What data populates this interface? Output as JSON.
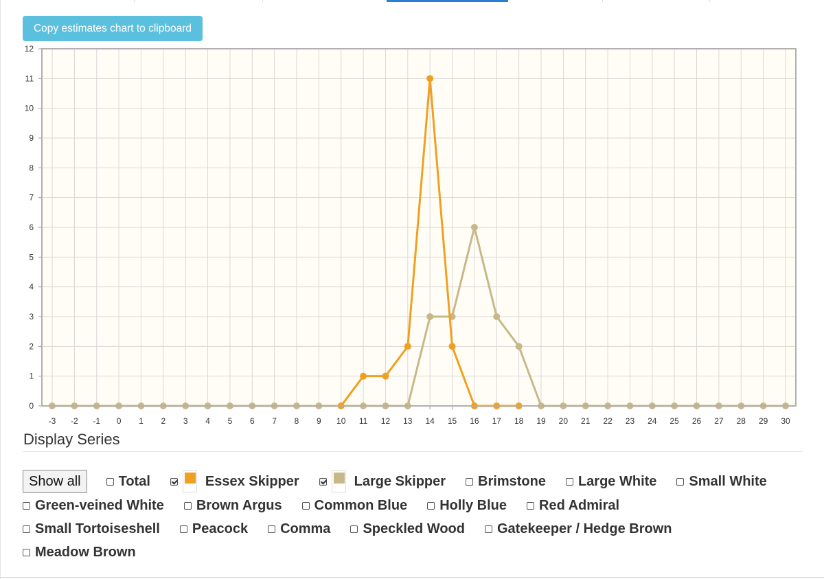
{
  "toolbar": {
    "copy_label": "Copy estimates chart to clipboard"
  },
  "colors": {
    "essex": "#f0a020",
    "large": "#c8b888",
    "plot_bg": "#fffdf5",
    "grid": "#d8d8d8",
    "axis": "#999999",
    "copy_button": "#5bc0de"
  },
  "chart_data": {
    "type": "line",
    "x": [
      -3,
      -2,
      -1,
      0,
      1,
      2,
      3,
      4,
      5,
      6,
      7,
      8,
      9,
      10,
      11,
      12,
      13,
      14,
      15,
      16,
      17,
      18,
      19,
      20,
      21,
      22,
      23,
      24,
      25,
      26,
      27,
      28,
      29,
      30
    ],
    "xlim": [
      -3,
      30
    ],
    "ylim": [
      0,
      12
    ],
    "yticks": [
      0,
      1,
      2,
      3,
      4,
      5,
      6,
      7,
      8,
      9,
      10,
      11,
      12
    ],
    "grid": true,
    "series": [
      {
        "name": "Large Skipper",
        "color": "#c8b888",
        "values": [
          0,
          0,
          0,
          0,
          0,
          0,
          0,
          0,
          0,
          0,
          0,
          0,
          0,
          0,
          0,
          0,
          0,
          3,
          3,
          6,
          3,
          2,
          0,
          0,
          0,
          0,
          0,
          0,
          0,
          0,
          0,
          0,
          0,
          0
        ]
      },
      {
        "name": "Essex Skipper",
        "color": "#f0a020",
        "values": [
          null,
          null,
          null,
          null,
          null,
          null,
          null,
          null,
          null,
          null,
          null,
          null,
          null,
          0,
          1,
          1,
          2,
          11,
          2,
          0,
          0,
          0,
          null,
          null,
          null,
          null,
          null,
          null,
          null,
          null,
          null,
          null,
          null,
          null
        ]
      }
    ]
  },
  "display_series": {
    "heading": "Display Series",
    "show_all_label": "Show all",
    "rows": [
      [
        {
          "label": "Total",
          "checked": false
        },
        {
          "label": "Essex Skipper",
          "checked": true,
          "color": "#f0a020"
        },
        {
          "label": "Large Skipper",
          "checked": true,
          "color": "#c8b888"
        },
        {
          "label": "Brimstone",
          "checked": false
        },
        {
          "label": "Large White",
          "checked": false
        },
        {
          "label": "Small White",
          "checked": false
        }
      ],
      [
        {
          "label": "Green-veined White",
          "checked": false
        },
        {
          "label": "Brown Argus",
          "checked": false
        },
        {
          "label": "Common Blue",
          "checked": false
        },
        {
          "label": "Holly Blue",
          "checked": false
        },
        {
          "label": "Red Admiral",
          "checked": false
        }
      ],
      [
        {
          "label": "Small Tortoiseshell",
          "checked": false
        },
        {
          "label": "Peacock",
          "checked": false
        },
        {
          "label": "Comma",
          "checked": false
        },
        {
          "label": "Speckled Wood",
          "checked": false
        },
        {
          "label": "Gatekeeper / Hedge Brown",
          "checked": false
        }
      ],
      [
        {
          "label": "Meadow Brown",
          "checked": false
        }
      ]
    ]
  }
}
